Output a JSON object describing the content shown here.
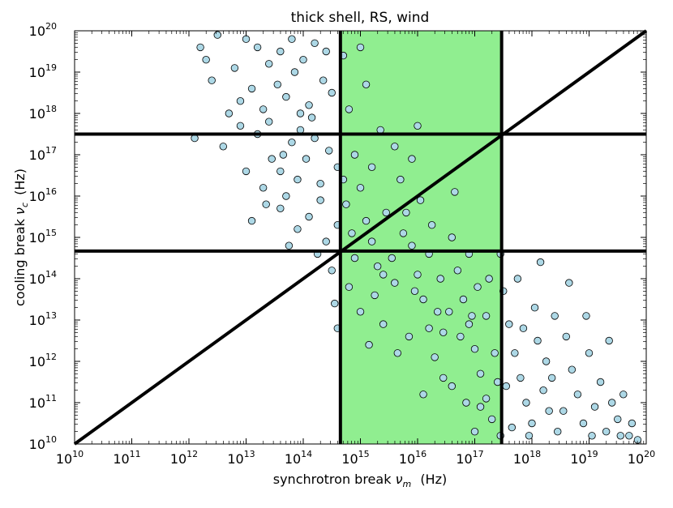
{
  "chart_data": {
    "type": "scatter",
    "title": "thick shell, RS,  wind",
    "xlabel": "synchrotron break",
    "xlabel_symbol": "ν",
    "xlabel_sub": "m",
    "xlabel_unit": "(Hz)",
    "ylabel": "cooling break",
    "ylabel_symbol": "ν",
    "ylabel_sub": "c",
    "ylabel_unit": "(Hz)",
    "xscale": "log",
    "yscale": "log",
    "xlim_log10": [
      10,
      20
    ],
    "ylim_log10": [
      10,
      20
    ],
    "tick_base": "10",
    "tick_exponents": [
      "10",
      "11",
      "12",
      "13",
      "14",
      "15",
      "16",
      "17",
      "18",
      "19",
      "20"
    ],
    "vertical_lines_log10": [
      14.65,
      17.47
    ],
    "horizontal_lines_log10": [
      14.67,
      17.5
    ],
    "diagonal": "y = x",
    "shaded_band_log10": [
      14.65,
      17.47
    ],
    "colors": {
      "shade": "#90ee90",
      "marker_fill": "#add8e6",
      "marker_edge": "#000000",
      "lines": "#000000"
    },
    "points_log10": [
      [
        12.2,
        19.6
      ],
      [
        12.4,
        18.8
      ],
      [
        12.6,
        17.2
      ],
      [
        12.8,
        19.1
      ],
      [
        12.9,
        18.3
      ],
      [
        12.1,
        17.4
      ],
      [
        12.5,
        19.9
      ],
      [
        12.7,
        18.0
      ],
      [
        12.3,
        19.3
      ],
      [
        12.9,
        17.7
      ],
      [
        13.0,
        19.8
      ],
      [
        13.1,
        18.6
      ],
      [
        13.2,
        17.5
      ],
      [
        13.3,
        16.2
      ],
      [
        13.4,
        19.2
      ],
      [
        13.1,
        15.4
      ],
      [
        13.3,
        18.1
      ],
      [
        13.45,
        16.9
      ],
      [
        13.2,
        19.6
      ],
      [
        13.4,
        17.8
      ],
      [
        13.0,
        16.6
      ],
      [
        13.35,
        15.8
      ],
      [
        13.6,
        19.5
      ],
      [
        13.7,
        18.4
      ],
      [
        13.8,
        17.3
      ],
      [
        13.9,
        16.4
      ],
      [
        13.6,
        15.7
      ],
      [
        13.75,
        14.8
      ],
      [
        13.85,
        19.0
      ],
      [
        13.95,
        18.0
      ],
      [
        13.65,
        17.0
      ],
      [
        13.7,
        16.0
      ],
      [
        13.9,
        15.2
      ],
      [
        13.55,
        18.7
      ],
      [
        13.8,
        19.8
      ],
      [
        13.95,
        17.6
      ],
      [
        13.6,
        16.6
      ],
      [
        14.0,
        19.3
      ],
      [
        14.1,
        18.2
      ],
      [
        14.2,
        17.4
      ],
      [
        14.3,
        16.3
      ],
      [
        14.1,
        15.5
      ],
      [
        14.4,
        14.9
      ],
      [
        14.5,
        14.2
      ],
      [
        14.55,
        13.4
      ],
      [
        14.6,
        12.8
      ],
      [
        14.2,
        19.7
      ],
      [
        14.35,
        18.8
      ],
      [
        14.45,
        17.1
      ],
      [
        14.3,
        15.9
      ],
      [
        14.6,
        16.7
      ],
      [
        14.05,
        16.9
      ],
      [
        14.5,
        18.5
      ],
      [
        14.25,
        14.6
      ],
      [
        14.6,
        15.3
      ],
      [
        14.4,
        19.5
      ],
      [
        14.15,
        17.9
      ],
      [
        14.7,
        19.4
      ],
      [
        14.8,
        18.1
      ],
      [
        14.9,
        17.0
      ],
      [
        15.0,
        16.2
      ],
      [
        15.1,
        15.4
      ],
      [
        15.2,
        14.9
      ],
      [
        15.3,
        14.3
      ],
      [
        14.8,
        13.8
      ],
      [
        15.0,
        13.2
      ],
      [
        15.4,
        12.9
      ],
      [
        14.75,
        15.8
      ],
      [
        15.2,
        16.7
      ],
      [
        15.35,
        17.6
      ],
      [
        15.1,
        18.7
      ],
      [
        14.9,
        14.5
      ],
      [
        15.45,
        15.6
      ],
      [
        15.25,
        13.6
      ],
      [
        14.7,
        16.4
      ],
      [
        15.0,
        19.6
      ],
      [
        15.4,
        14.1
      ],
      [
        15.15,
        12.4
      ],
      [
        14.85,
        15.1
      ],
      [
        15.6,
        17.2
      ],
      [
        15.7,
        16.4
      ],
      [
        15.8,
        15.6
      ],
      [
        15.9,
        14.8
      ],
      [
        16.0,
        14.1
      ],
      [
        16.1,
        13.5
      ],
      [
        16.2,
        12.8
      ],
      [
        16.3,
        12.1
      ],
      [
        15.6,
        13.9
      ],
      [
        15.75,
        15.1
      ],
      [
        15.9,
        16.9
      ],
      [
        16.05,
        15.9
      ],
      [
        16.2,
        14.6
      ],
      [
        16.35,
        13.2
      ],
      [
        16.45,
        11.6
      ],
      [
        15.55,
        14.5
      ],
      [
        16.1,
        11.2
      ],
      [
        15.85,
        12.6
      ],
      [
        16.4,
        14.0
      ],
      [
        16.0,
        17.7
      ],
      [
        15.65,
        12.2
      ],
      [
        16.25,
        15.3
      ],
      [
        16.45,
        12.7
      ],
      [
        15.95,
        13.7
      ],
      [
        16.6,
        15.0
      ],
      [
        16.7,
        14.2
      ],
      [
        16.8,
        13.5
      ],
      [
        16.9,
        12.9
      ],
      [
        17.0,
        12.3
      ],
      [
        17.1,
        11.7
      ],
      [
        17.2,
        11.1
      ],
      [
        17.3,
        10.6
      ],
      [
        16.6,
        11.4
      ],
      [
        16.75,
        12.6
      ],
      [
        16.9,
        14.6
      ],
      [
        17.05,
        13.8
      ],
      [
        17.2,
        13.1
      ],
      [
        17.35,
        12.2
      ],
      [
        17.45,
        14.6
      ],
      [
        16.55,
        13.2
      ],
      [
        17.1,
        10.9
      ],
      [
        16.85,
        11.0
      ],
      [
        17.4,
        11.5
      ],
      [
        16.65,
        16.1
      ],
      [
        17.25,
        14.0
      ],
      [
        17.0,
        10.3
      ],
      [
        17.45,
        10.2
      ],
      [
        16.95,
        13.1
      ],
      [
        17.5,
        13.7
      ],
      [
        17.6,
        12.9
      ],
      [
        17.7,
        12.2
      ],
      [
        17.8,
        11.6
      ],
      [
        17.9,
        11.0
      ],
      [
        18.0,
        10.5
      ],
      [
        18.1,
        12.5
      ],
      [
        18.2,
        11.3
      ],
      [
        18.3,
        10.8
      ],
      [
        18.4,
        13.1
      ],
      [
        17.55,
        11.4
      ],
      [
        17.65,
        10.4
      ],
      [
        17.85,
        12.8
      ],
      [
        18.05,
        13.3
      ],
      [
        18.25,
        12.0
      ],
      [
        18.45,
        10.3
      ],
      [
        18.15,
        14.4
      ],
      [
        17.75,
        14.0
      ],
      [
        18.35,
        11.6
      ],
      [
        17.95,
        10.2
      ],
      [
        18.6,
        12.6
      ],
      [
        18.7,
        11.8
      ],
      [
        18.8,
        11.2
      ],
      [
        18.9,
        10.5
      ],
      [
        19.0,
        12.2
      ],
      [
        19.1,
        10.9
      ],
      [
        19.2,
        11.5
      ],
      [
        19.3,
        10.3
      ],
      [
        19.4,
        11.0
      ],
      [
        19.5,
        10.6
      ],
      [
        19.6,
        11.2
      ],
      [
        19.7,
        10.2
      ],
      [
        18.65,
        13.9
      ],
      [
        18.55,
        10.8
      ],
      [
        19.35,
        12.5
      ],
      [
        19.75,
        10.5
      ],
      [
        19.85,
        10.1
      ],
      [
        18.95,
        13.1
      ],
      [
        19.55,
        10.2
      ],
      [
        19.05,
        10.2
      ]
    ]
  }
}
